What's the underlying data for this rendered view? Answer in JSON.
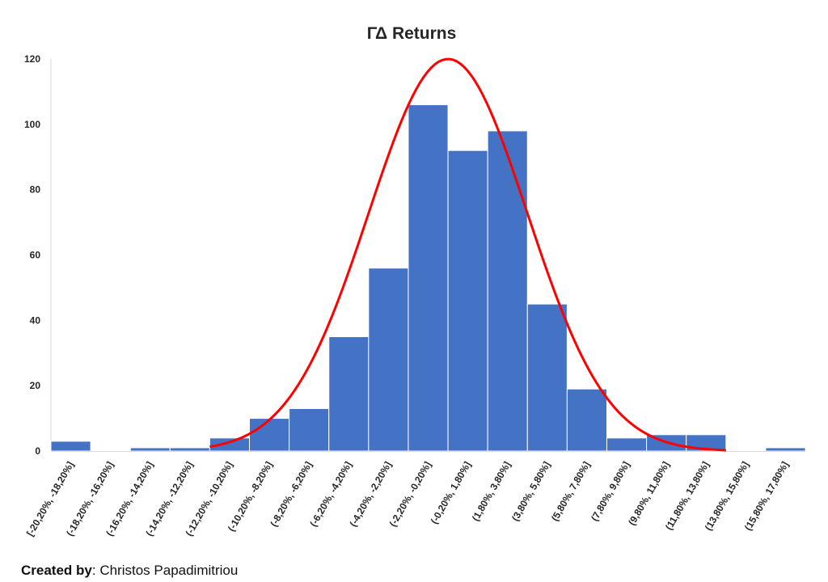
{
  "chart_data": {
    "type": "bar",
    "title": "ΓΔ Returns",
    "xlabel": "",
    "ylabel": "",
    "ylim": [
      0,
      120
    ],
    "yticks": [
      0,
      20,
      40,
      60,
      80,
      100,
      120
    ],
    "categories": [
      "[-20,20%, -18,20%]",
      "(-18,20%, -16,20%]",
      "(-16,20%, -14,20%]",
      "(-14,20%, -12,20%]",
      "(-12,20%, -10,20%]",
      "(-10,20%, -8,20%]",
      "(-8,20%, -6,20%]",
      "(-6,20%, -4,20%]",
      "(-4,20%, -2,20%]",
      "(-2,20%, -0,20%]",
      "(-0,20%, 1,80%]",
      "(1,80%, 3,80%]",
      "(3,80%, 5,80%]",
      "(5,80%, 7,80%]",
      "(7,80%, 9,80%]",
      "(9,80%, 11,80%]",
      "(11,80%, 13,80%]",
      "(13,80%, 15,80%]",
      "(15,80%, 17,80%]"
    ],
    "values": [
      3,
      0,
      1,
      1,
      4,
      10,
      13,
      35,
      56,
      106,
      92,
      98,
      45,
      19,
      4,
      5,
      5,
      0,
      1
    ],
    "bar_color": "#4472C4",
    "curve": {
      "type": "normal-fit",
      "color": "#FF0000",
      "peak": 120,
      "center_category": 10,
      "sigma_categories": 2.0,
      "from_category": 4,
      "to_category": 17
    },
    "grid": false,
    "legend": "none"
  },
  "footer": {
    "label": "Created by",
    "separator": ": ",
    "author": "Christos Papadimitriou"
  }
}
